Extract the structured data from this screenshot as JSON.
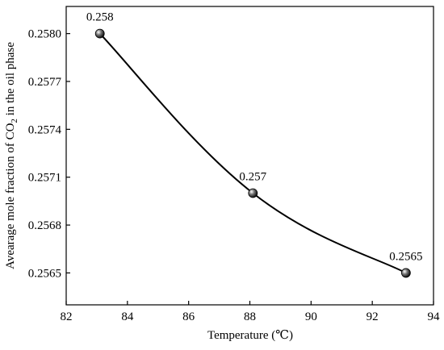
{
  "chart_data": {
    "type": "line",
    "x": [
      83.1,
      88.1,
      93.1
    ],
    "y": [
      0.258,
      0.257,
      0.2565
    ],
    "data_labels": [
      "0.258",
      "0.257",
      "0.2565"
    ],
    "xlabel": "Temperature (℃)",
    "ylabel": {
      "before": "Avearage mole fraction of CO",
      "subscript": "2",
      "after": " in the oil phase"
    },
    "xlim": [
      82,
      94
    ],
    "ylim": [
      0.2563,
      0.25817
    ],
    "x_ticks": [
      82,
      84,
      86,
      88,
      90,
      92,
      94
    ],
    "x_tick_labels": [
      "82",
      "84",
      "86",
      "88",
      "90",
      "92",
      "94"
    ],
    "y_ticks": [
      0.2565,
      0.2568,
      0.2571,
      0.2574,
      0.2577,
      0.258
    ],
    "y_tick_labels": [
      "0.2565",
      "0.2568",
      "0.2571",
      "0.2574",
      "0.2577",
      "0.2580"
    ],
    "smooth_line": true,
    "marker": "sphere",
    "grid": false,
    "legend": "none",
    "colors": {
      "line": "#000000",
      "marker": "#222222",
      "marker_highlight": "#ffffff",
      "axis": "#000000",
      "background": "#ffffff"
    }
  }
}
